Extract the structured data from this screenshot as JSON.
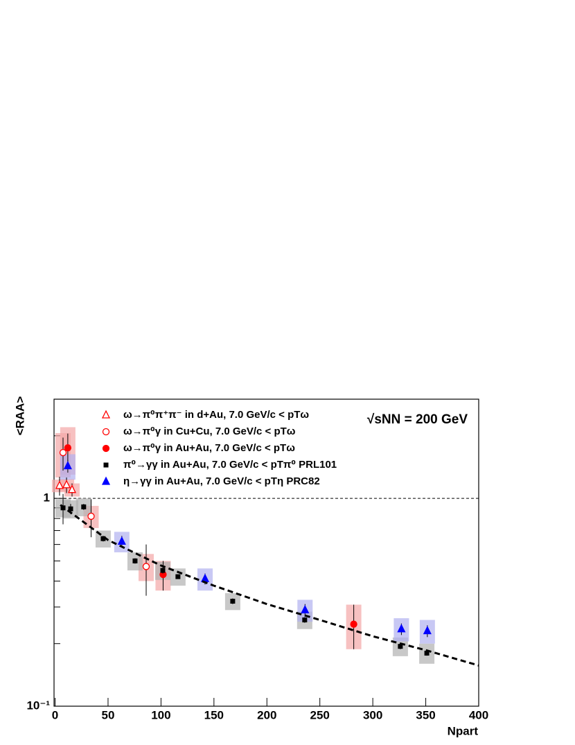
{
  "chart_data": {
    "type": "scatter",
    "y_label": "<RAA>",
    "x_label": "Npart",
    "annotation": "√sNN = 200 GeV",
    "log_y": true,
    "xlim": [
      -1,
      400
    ],
    "ylim": [
      0.1,
      3
    ],
    "xticks": [
      0,
      50,
      100,
      150,
      200,
      250,
      300,
      350,
      400
    ],
    "yticks": [
      {
        "value": 0.1,
        "label": "10⁻¹"
      },
      1
    ],
    "yminor_ticks": [
      0.2,
      0.3,
      0.4,
      0.5,
      0.6,
      0.7,
      0.8,
      0.9,
      2,
      3
    ],
    "reference_line": 1,
    "series": [
      {
        "name": "ω→π⁰π⁺π⁻ in d+Au, 7.0 GeV/c < pTω",
        "marker": "open-triangle",
        "color": "#ff0000",
        "box_color": "#f4a6a6",
        "x": [
          4.2,
          10.8,
          16
        ],
        "values": [
          1.15,
          1.16,
          1.1
        ],
        "errors": [
          0.12,
          0.1,
          0.08
        ],
        "sys": [
          0.08,
          0.08,
          0.08
        ]
      },
      {
        "name": "ω→π⁰γ in Cu+Cu, 7.0 GeV/c < pTω",
        "marker": "open-circle",
        "color": "#ff0000",
        "box_color": "#f4a6a6",
        "x": [
          7.5,
          34,
          86
        ],
        "values": [
          1.66,
          0.82,
          0.47
        ],
        "errors": [
          0.3,
          0.17,
          0.13
        ],
        "sys": [
          0.4,
          0.1,
          0.07
        ]
      },
      {
        "name": "ω→π⁰γ in Au+Au, 7.0 GeV/c < pTω",
        "marker": "circle",
        "color": "#ff0000",
        "box_color": "#f4a6a6",
        "x": [
          12,
          102,
          282
        ],
        "values": [
          1.75,
          0.43,
          0.248
        ],
        "errors": [
          0.3,
          0.07,
          0.06
        ],
        "sys": [
          0.45,
          0.07,
          0.06
        ]
      },
      {
        "name": "π⁰→γγ in Au+Au, 7.0 GeV/c < pTπ⁰ PRL101",
        "marker": "square",
        "color": "#000000",
        "box_color": "#b0b0b0",
        "x": [
          7.5,
          14.7,
          27,
          45.4,
          75.5,
          101.7,
          116,
          167.7,
          235.7,
          326,
          351
        ],
        "values": [
          0.9,
          0.89,
          0.91,
          0.64,
          0.5,
          0.45,
          0.42,
          0.32,
          0.26,
          0.194,
          0.18
        ],
        "errors": [
          0.15,
          0.05,
          0.03,
          0.02,
          0.015,
          0.015,
          0.01,
          0.01,
          0.008,
          0.006,
          0.005
        ],
        "sys": [
          0.09,
          0.09,
          0.09,
          0.06,
          0.05,
          0.045,
          0.04,
          0.03,
          0.025,
          0.02,
          0.02
        ]
      },
      {
        "name": "η→γγ in Au+Au, 7.0 GeV/c < pTη PRC82",
        "marker": "triangle",
        "color": "#0000ff",
        "box_color": "#b0b0f0",
        "x": [
          12,
          63,
          141.6,
          236,
          327,
          351.5
        ],
        "values": [
          1.43,
          0.62,
          0.41,
          0.29,
          0.235,
          0.23
        ],
        "errors": [
          0.1,
          0.04,
          0.025,
          0.02,
          0.015,
          0.015
        ],
        "sys": [
          0.2,
          0.07,
          0.05,
          0.035,
          0.03,
          0.03
        ]
      }
    ],
    "fit": {
      "x": [
        5,
        50,
        100,
        150,
        200,
        250,
        300,
        350,
        400
      ],
      "values": [
        0.93,
        0.63,
        0.475,
        0.38,
        0.31,
        0.26,
        0.217,
        0.186,
        0.157
      ]
    }
  }
}
